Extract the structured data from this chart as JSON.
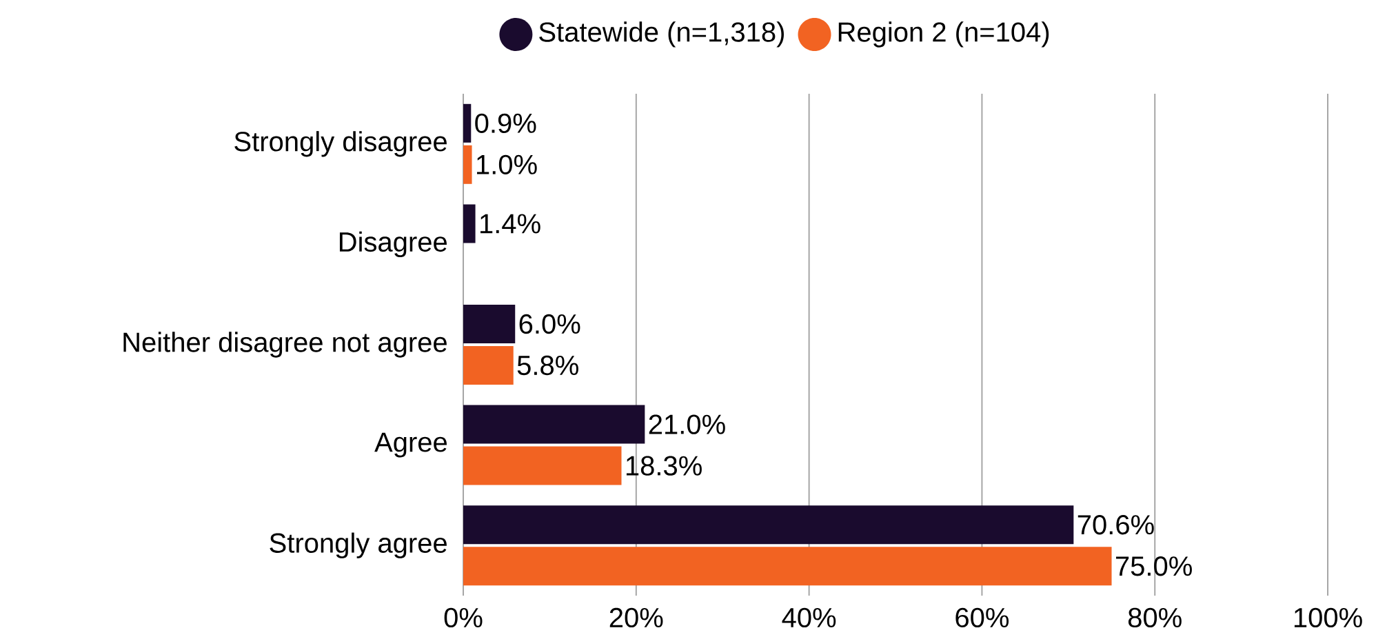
{
  "chart_data": {
    "type": "bar",
    "orientation": "horizontal",
    "categories": [
      "Strongly disagree",
      "Disagree",
      "Neither disagree not agree",
      "Agree",
      "Strongly agree"
    ],
    "series": [
      {
        "name": "Statewide (n=1,318)",
        "color": "#1a0b2e",
        "values": [
          0.9,
          1.4,
          6.0,
          21.0,
          70.6
        ],
        "value_labels": [
          "0.9%",
          "1.4%",
          "6.0%",
          "21.0%",
          "70.6%"
        ]
      },
      {
        "name": "Region 2 (n=104)",
        "color": "#f26322",
        "values": [
          1.0,
          null,
          5.8,
          18.3,
          75.0
        ],
        "value_labels": [
          "1.0%",
          null,
          "5.8%",
          "18.3%",
          "75.0%"
        ]
      }
    ],
    "xlim": [
      0,
      100
    ],
    "xticks": [
      {
        "value": 0,
        "label": "0%"
      },
      {
        "value": 20,
        "label": "20%"
      },
      {
        "value": 40,
        "label": "40%"
      },
      {
        "value": 60,
        "label": "60%"
      },
      {
        "value": 80,
        "label": "80%"
      },
      {
        "value": 100,
        "label": "100%"
      }
    ],
    "grid": "x",
    "legend": "top"
  }
}
